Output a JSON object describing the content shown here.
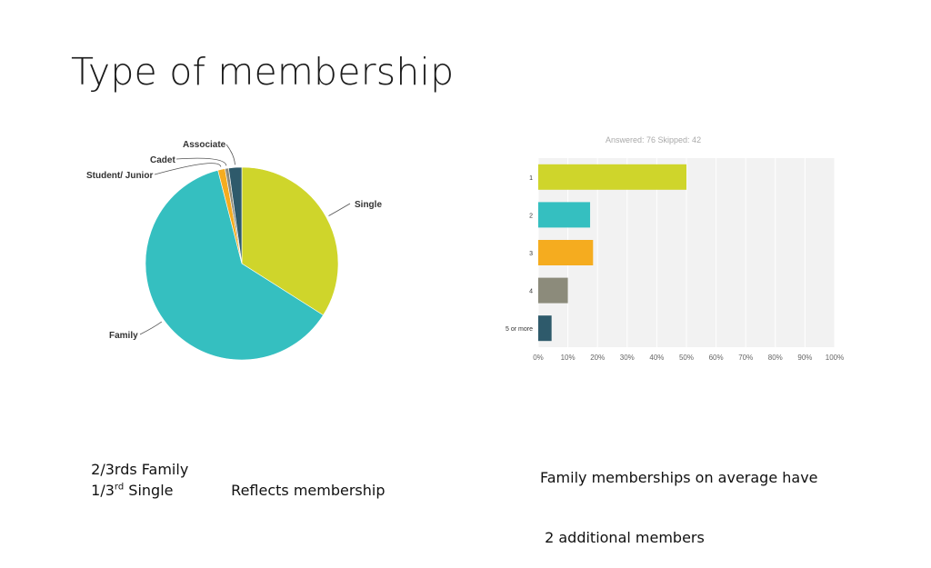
{
  "slide": {
    "title": "Type of membership"
  },
  "notes": {
    "family_share": "2/3rds Family",
    "single_fraction": "1/3",
    "single_sup": "rd",
    "single_word": " Single",
    "reflects": "Reflects membership",
    "family_avg_line1": "Family memberships on average have",
    "family_avg_line2": " 2 additional members"
  },
  "chart_data": [
    {
      "type": "pie",
      "slices": [
        {
          "label": "Single",
          "value": 34,
          "color": "#cfd52b"
        },
        {
          "label": "Family",
          "value": 62,
          "color": "#35bfc0"
        },
        {
          "label": "Student/ Junior",
          "value": 1.2,
          "color": "#f5ac1f"
        },
        {
          "label": "Cadet",
          "value": 0.6,
          "color": "#8c8b7b"
        },
        {
          "label": "Associate",
          "value": 2.2,
          "color": "#2e5a6b"
        }
      ]
    },
    {
      "type": "bar",
      "orientation": "horizontal",
      "header": "Answered: 76    Skipped: 42",
      "categories": [
        "1",
        "2",
        "3",
        "4",
        "5 or more"
      ],
      "values": [
        50,
        17.5,
        18.5,
        10,
        4.5
      ],
      "colors": [
        "#cfd52b",
        "#35bfc0",
        "#f5ac1f",
        "#8c8b7b",
        "#2e5a6b"
      ],
      "xlim": [
        0,
        100
      ],
      "xticks": [
        "0%",
        "10%",
        "20%",
        "30%",
        "40%",
        "50%",
        "60%",
        "70%",
        "80%",
        "90%",
        "100%"
      ],
      "grid": true
    }
  ]
}
